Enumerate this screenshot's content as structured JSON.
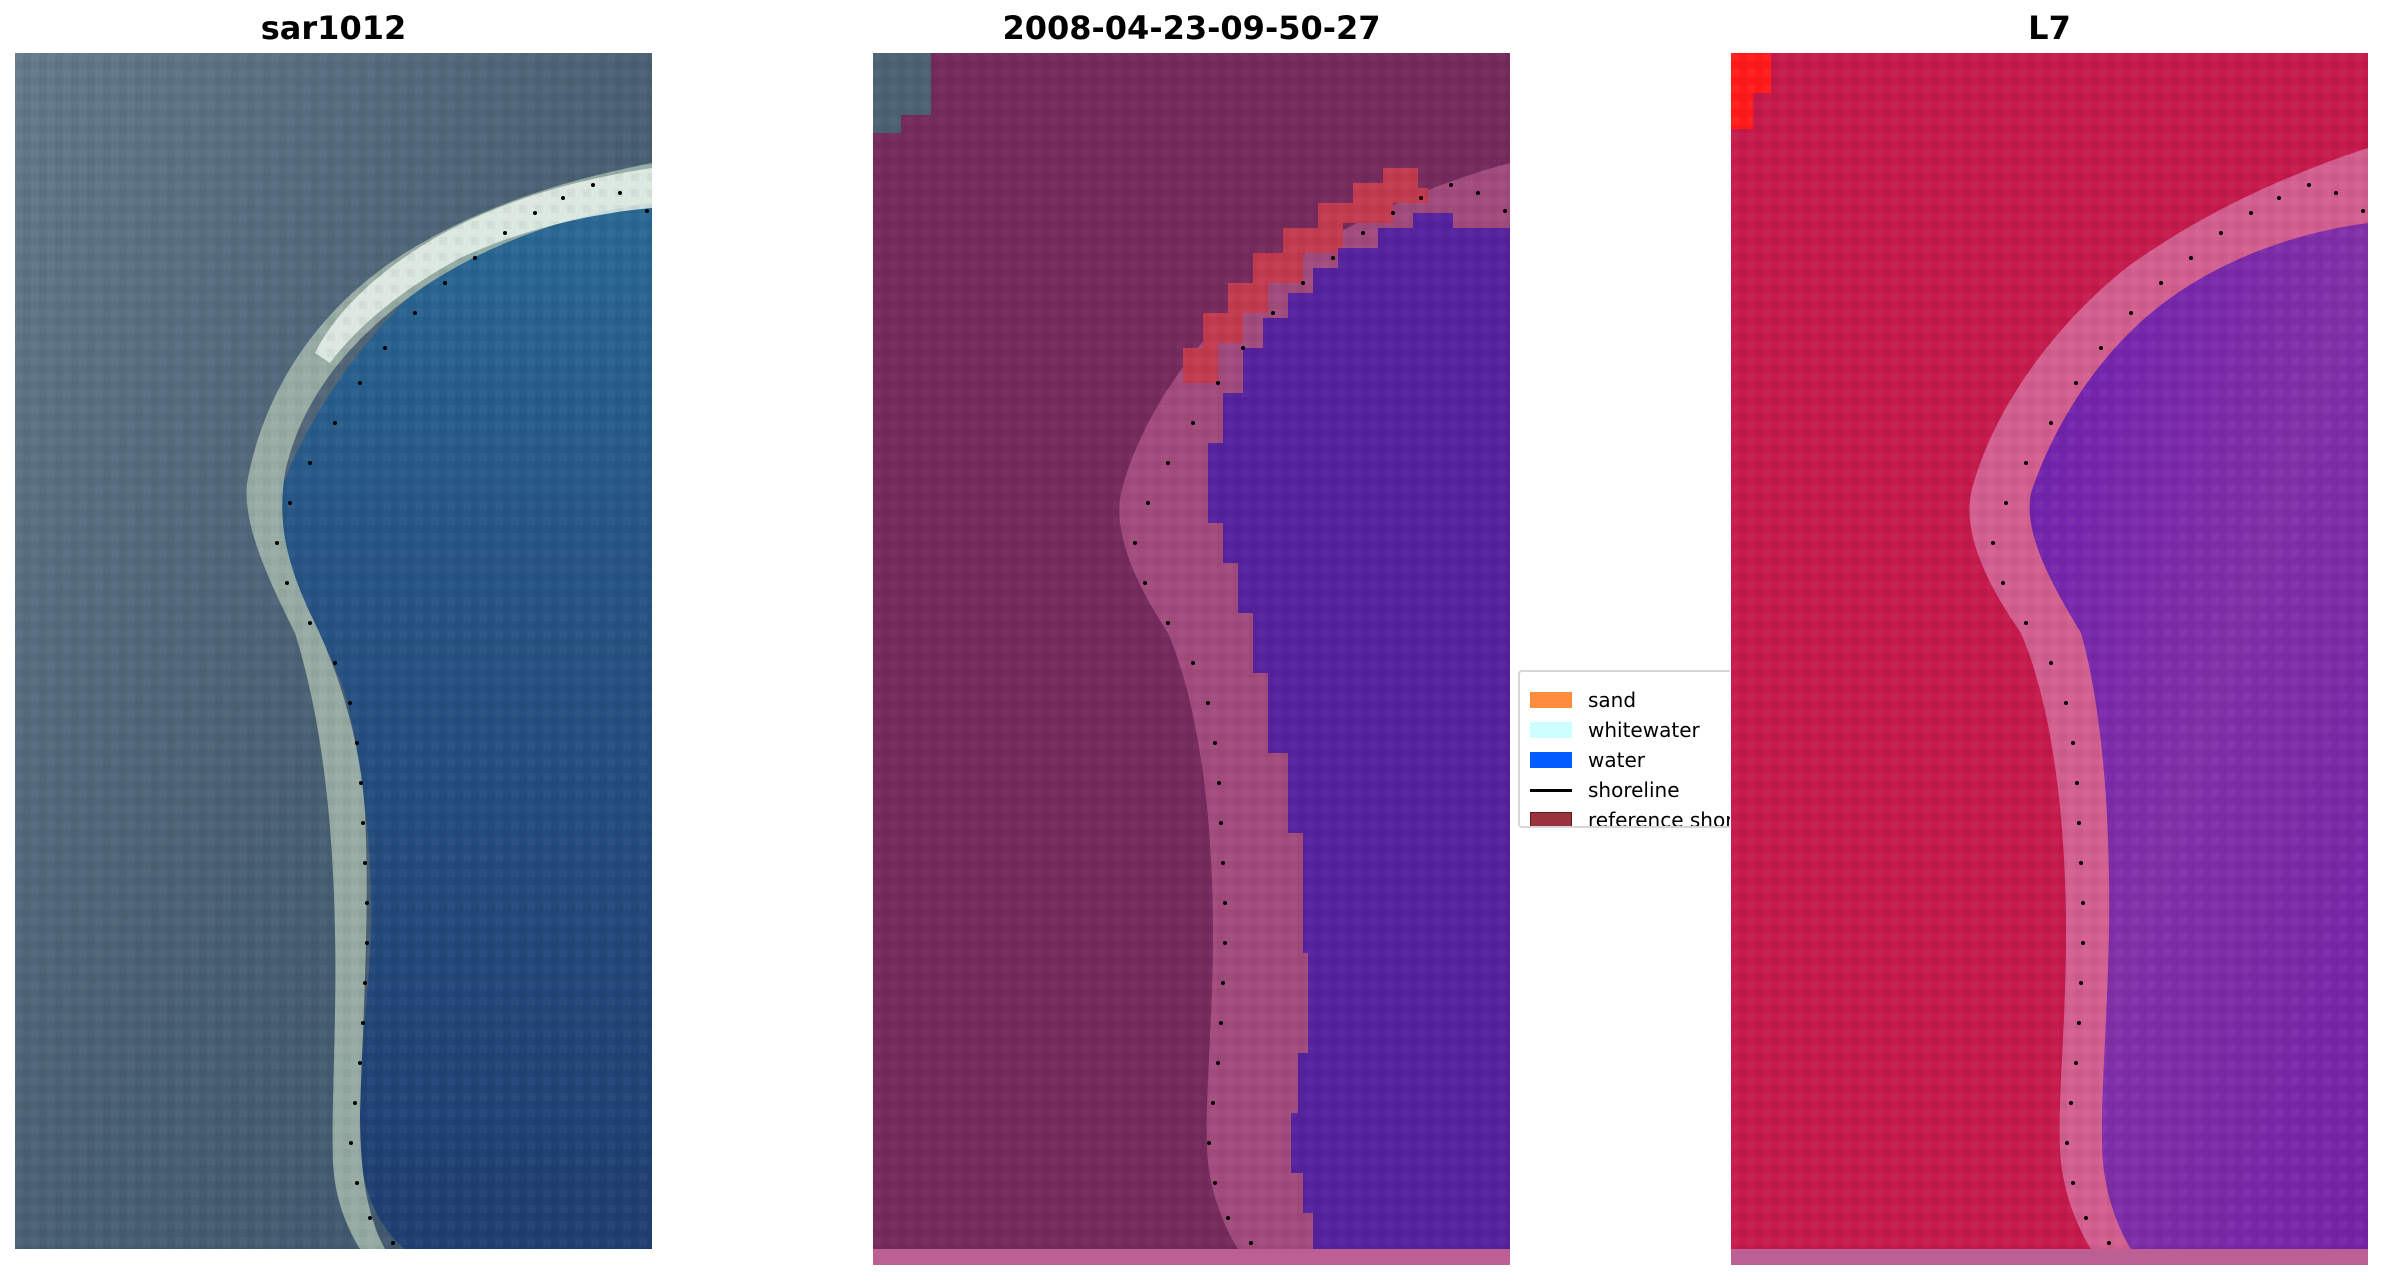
{
  "panels": [
    {
      "title": "sar1012",
      "image": "rgb-satellite-image"
    },
    {
      "title": "2008-04-23-09-50-27",
      "image": "classified-image"
    },
    {
      "title": "L7",
      "image": "index-image"
    }
  ],
  "legend": {
    "items": [
      {
        "label": "sand",
        "kind": "patch",
        "color": "#ff8c3c"
      },
      {
        "label": "whitewater",
        "kind": "patch",
        "color": "#ccffff"
      },
      {
        "label": "water",
        "kind": "patch",
        "color": "#005cff"
      },
      {
        "label": "shoreline",
        "kind": "line",
        "color": "#000000"
      },
      {
        "label": "reference shoreline",
        "kind": "patch",
        "color": "#99333d",
        "border": "#5a1a20"
      }
    ]
  },
  "colors": {
    "rgb_land": "#4c6272",
    "rgb_water": "#234a7e",
    "rgb_beach": "#b9c8bf",
    "class_land": "#742a5c",
    "class_water": "#55219d",
    "class_sand": "#c23a4e",
    "index_land": "#c51a4b",
    "index_water": "#7f2aa4",
    "index_edge": "#d25f8f"
  }
}
